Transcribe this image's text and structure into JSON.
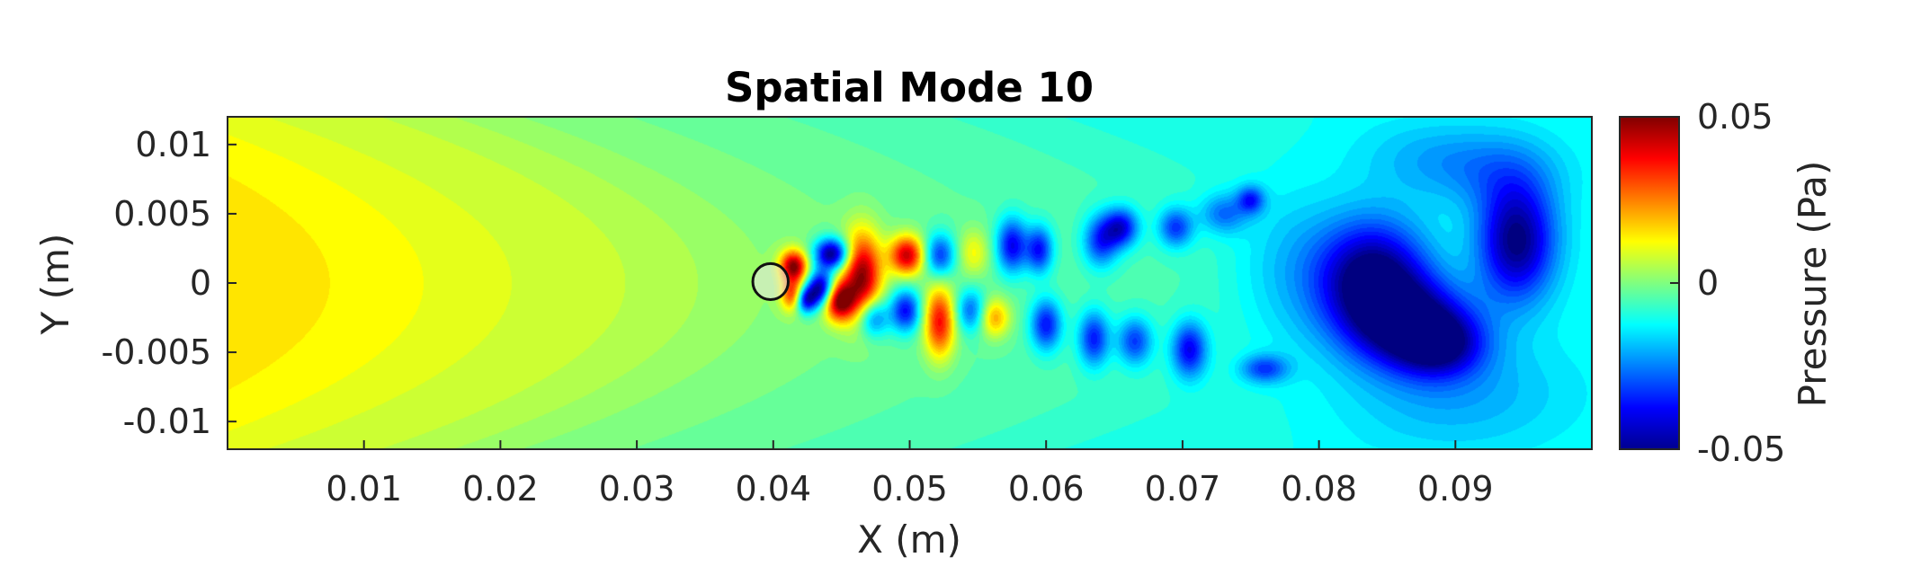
{
  "chart_data": {
    "type": "heatmap",
    "title": "Spatial Mode 10",
    "xlabel": "X (m)",
    "ylabel": "Y (m)",
    "xlim": [
      0,
      0.1
    ],
    "ylim": [
      -0.012,
      0.012
    ],
    "xticks": [
      0.01,
      0.02,
      0.03,
      0.04,
      0.05,
      0.06,
      0.07,
      0.08,
      0.09
    ],
    "xtick_labels": [
      "0.01",
      "0.02",
      "0.03",
      "0.04",
      "0.05",
      "0.06",
      "0.07",
      "0.08",
      "0.09"
    ],
    "yticks": [
      0.01,
      0.005,
      0,
      -0.005,
      -0.01
    ],
    "ytick_labels": [
      "0.01",
      "0.005",
      "0",
      "-0.005",
      "-0.01"
    ],
    "colormap": "jet",
    "colorbar": {
      "label": "Pressure (Pa)",
      "clim": [
        -0.05,
        0.05
      ],
      "ticks": [
        0.05,
        0,
        -0.05
      ],
      "tick_labels": [
        "0.05",
        "0",
        "-0.05"
      ]
    },
    "background_level": -0.004,
    "upstream_gradient": [
      {
        "x": 0.0,
        "value": 0.016
      },
      {
        "x": 0.01,
        "value": 0.013
      },
      {
        "x": 0.02,
        "value": 0.009
      },
      {
        "x": 0.03,
        "value": 0.006
      },
      {
        "x": 0.04,
        "value": 0.001
      },
      {
        "x": 0.05,
        "value": -0.002
      },
      {
        "x": 0.06,
        "value": -0.004
      },
      {
        "x": 0.07,
        "value": -0.006
      },
      {
        "x": 0.08,
        "value": -0.009
      },
      {
        "x": 0.1,
        "value": -0.011
      }
    ],
    "cylinder": {
      "x": 0.0398,
      "y": 0.0001,
      "r": 0.0013
    },
    "features": [
      {
        "x": 0.0415,
        "y": 0.0012,
        "sx": 0.0007,
        "sy": 0.0008,
        "value": 0.05
      },
      {
        "x": 0.0415,
        "y": -0.0009,
        "sx": 0.0006,
        "sy": 0.0008,
        "value": 0.04
      },
      {
        "x": 0.0423,
        "y": -0.0012,
        "sx": 0.0006,
        "sy": 0.0007,
        "value": -0.045
      },
      {
        "x": 0.0443,
        "y": 0.0021,
        "sx": 0.0009,
        "sy": 0.0008,
        "value": -0.05
      },
      {
        "x": 0.0435,
        "y": -0.0004,
        "sx": 0.0007,
        "sy": 0.0009,
        "value": -0.05
      },
      {
        "x": 0.0448,
        "y": -0.0013,
        "sx": 0.0008,
        "sy": 0.001,
        "value": 0.05
      },
      {
        "x": 0.0465,
        "y": 0.0005,
        "sx": 0.001,
        "sy": 0.0022,
        "value": 0.05
      },
      {
        "x": 0.0473,
        "y": -0.0025,
        "sx": 0.0008,
        "sy": 0.001,
        "value": -0.03
      },
      {
        "x": 0.0498,
        "y": 0.002,
        "sx": 0.0009,
        "sy": 0.001,
        "value": 0.045
      },
      {
        "x": 0.0497,
        "y": -0.002,
        "sx": 0.0008,
        "sy": 0.0011,
        "value": -0.035
      },
      {
        "x": 0.0522,
        "y": 0.002,
        "sx": 0.0008,
        "sy": 0.0011,
        "value": -0.03
      },
      {
        "x": 0.0522,
        "y": -0.0028,
        "sx": 0.0008,
        "sy": 0.0018,
        "value": 0.04
      },
      {
        "x": 0.0547,
        "y": 0.0022,
        "sx": 0.0008,
        "sy": 0.0012,
        "value": 0.015
      },
      {
        "x": 0.0545,
        "y": -0.002,
        "sx": 0.0008,
        "sy": 0.0011,
        "value": -0.025
      },
      {
        "x": 0.0575,
        "y": 0.0027,
        "sx": 0.0008,
        "sy": 0.0014,
        "value": -0.035
      },
      {
        "x": 0.0562,
        "y": -0.0025,
        "sx": 0.0008,
        "sy": 0.001,
        "value": 0.025
      },
      {
        "x": 0.0595,
        "y": 0.0024,
        "sx": 0.0007,
        "sy": 0.0012,
        "value": -0.032
      },
      {
        "x": 0.06,
        "y": -0.003,
        "sx": 0.0008,
        "sy": 0.0013,
        "value": -0.032
      },
      {
        "x": 0.064,
        "y": 0.003,
        "sx": 0.0009,
        "sy": 0.0013,
        "value": -0.028
      },
      {
        "x": 0.0635,
        "y": -0.004,
        "sx": 0.0008,
        "sy": 0.0014,
        "value": -0.03
      },
      {
        "x": 0.0655,
        "y": 0.004,
        "sx": 0.0009,
        "sy": 0.001,
        "value": -0.034
      },
      {
        "x": 0.0665,
        "y": -0.0042,
        "sx": 0.0009,
        "sy": 0.0012,
        "value": -0.026
      },
      {
        "x": 0.0695,
        "y": 0.004,
        "sx": 0.0009,
        "sy": 0.001,
        "value": -0.026
      },
      {
        "x": 0.0705,
        "y": -0.0048,
        "sx": 0.0009,
        "sy": 0.0014,
        "value": -0.032
      },
      {
        "x": 0.073,
        "y": 0.005,
        "sx": 0.0012,
        "sy": 0.001,
        "value": -0.018
      },
      {
        "x": 0.075,
        "y": 0.006,
        "sx": 0.0007,
        "sy": 0.0007,
        "value": -0.024
      },
      {
        "x": 0.076,
        "y": -0.0062,
        "sx": 0.0012,
        "sy": 0.0007,
        "value": -0.022
      },
      {
        "x": 0.078,
        "y": 0.001,
        "sx": 0.003,
        "sy": 0.004,
        "value": -0.01
      },
      {
        "x": 0.084,
        "y": 0.0002,
        "sx": 0.0028,
        "sy": 0.003,
        "value": -0.045
      },
      {
        "x": 0.087,
        "y": -0.003,
        "sx": 0.003,
        "sy": 0.0022,
        "value": -0.036
      },
      {
        "x": 0.089,
        "y": -0.0045,
        "sx": 0.0022,
        "sy": 0.0016,
        "value": -0.025
      },
      {
        "x": 0.0945,
        "y": 0.003,
        "sx": 0.002,
        "sy": 0.003,
        "value": -0.04
      },
      {
        "x": 0.093,
        "y": 0.008,
        "sx": 0.0035,
        "sy": 0.002,
        "value": -0.01
      },
      {
        "x": 0.088,
        "y": 0.009,
        "sx": 0.004,
        "sy": 0.002,
        "value": -0.008
      },
      {
        "x": 0.09,
        "y": -0.008,
        "sx": 0.006,
        "sy": 0.003,
        "value": -0.01
      }
    ]
  }
}
